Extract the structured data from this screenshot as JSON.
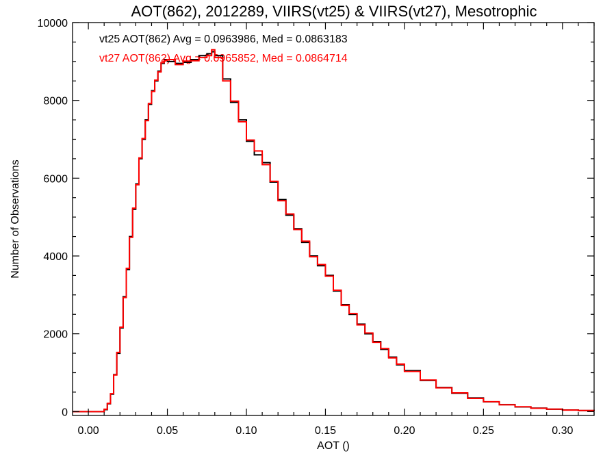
{
  "chart_data": {
    "type": "line",
    "title": "AOT(862), 2012289, VIIRS(vt25) & VIIRS(vt27), Mesotrophic",
    "xlabel": "AOT ()",
    "ylabel": "Number of Observations",
    "xlim": [
      -0.01,
      0.32
    ],
    "ylim": [
      -100,
      10000
    ],
    "x_ticks": [
      "0.00",
      "0.05",
      "0.10",
      "0.15",
      "0.20",
      "0.25",
      "0.30"
    ],
    "y_ticks": [
      "0",
      "2000",
      "4000",
      "6000",
      "8000",
      "10000"
    ],
    "grid": false,
    "annotations": [
      {
        "text": "vt25 AOT(862) Avg = 0.0963986, Med = 0.0863183",
        "color": "#000000"
      },
      {
        "text": "vt27 AOT(862) Avg = 0.0965852, Med = 0.0864714",
        "color": "#ff0000"
      }
    ],
    "series": [
      {
        "color": "#000000",
        "x": [
          -0.01,
          0.0,
          0.005,
          0.01,
          0.012,
          0.014,
          0.016,
          0.018,
          0.02,
          0.022,
          0.024,
          0.026,
          0.028,
          0.03,
          0.032,
          0.034,
          0.036,
          0.038,
          0.04,
          0.042,
          0.044,
          0.046,
          0.048,
          0.05,
          0.055,
          0.06,
          0.065,
          0.07,
          0.075,
          0.078,
          0.08,
          0.085,
          0.09,
          0.095,
          0.1,
          0.105,
          0.11,
          0.115,
          0.12,
          0.125,
          0.13,
          0.135,
          0.14,
          0.145,
          0.15,
          0.155,
          0.16,
          0.165,
          0.17,
          0.175,
          0.18,
          0.185,
          0.19,
          0.195,
          0.2,
          0.21,
          0.22,
          0.23,
          0.24,
          0.25,
          0.26,
          0.27,
          0.28,
          0.29,
          0.3,
          0.31,
          0.32
        ],
        "y": [
          0,
          0,
          0,
          50,
          200,
          450,
          950,
          1500,
          2150,
          2950,
          3650,
          4500,
          5200,
          5850,
          6500,
          7000,
          7500,
          7900,
          8250,
          8500,
          8750,
          8950,
          9050,
          9000,
          8950,
          8980,
          9050,
          9150,
          9200,
          9250,
          9150,
          8550,
          7950,
          7500,
          6950,
          6600,
          6400,
          5900,
          5450,
          5050,
          4700,
          4350,
          4000,
          3750,
          3500,
          3100,
          2750,
          2500,
          2250,
          2000,
          1800,
          1600,
          1400,
          1200,
          1050,
          800,
          620,
          470,
          350,
          250,
          180,
          120,
          90,
          60,
          40,
          25,
          15
        ]
      },
      {
        "color": "#ff0000",
        "x": [
          -0.01,
          0.0,
          0.005,
          0.01,
          0.012,
          0.014,
          0.016,
          0.018,
          0.02,
          0.022,
          0.024,
          0.026,
          0.028,
          0.03,
          0.032,
          0.034,
          0.036,
          0.038,
          0.04,
          0.042,
          0.044,
          0.046,
          0.048,
          0.05,
          0.055,
          0.06,
          0.065,
          0.07,
          0.075,
          0.078,
          0.08,
          0.085,
          0.09,
          0.095,
          0.1,
          0.105,
          0.11,
          0.115,
          0.12,
          0.125,
          0.13,
          0.135,
          0.14,
          0.145,
          0.15,
          0.155,
          0.16,
          0.165,
          0.17,
          0.175,
          0.18,
          0.185,
          0.19,
          0.195,
          0.2,
          0.21,
          0.22,
          0.23,
          0.24,
          0.25,
          0.26,
          0.27,
          0.28,
          0.29,
          0.3,
          0.31,
          0.32
        ],
        "y": [
          0,
          0,
          0,
          60,
          210,
          460,
          940,
          1520,
          2170,
          2930,
          3680,
          4480,
          5230,
          5830,
          6520,
          7020,
          7480,
          7920,
          8230,
          8520,
          8730,
          8970,
          9030,
          9050,
          8920,
          9010,
          9020,
          9100,
          9150,
          9300,
          9100,
          8500,
          7980,
          7450,
          6980,
          6700,
          6350,
          5920,
          5420,
          5080,
          4680,
          4380,
          3980,
          3780,
          3480,
          3120,
          2730,
          2520,
          2230,
          2020,
          1780,
          1620,
          1380,
          1220,
          1030,
          810,
          610,
          480,
          340,
          255,
          175,
          125,
          85,
          62,
          38,
          27,
          14
        ]
      }
    ]
  }
}
